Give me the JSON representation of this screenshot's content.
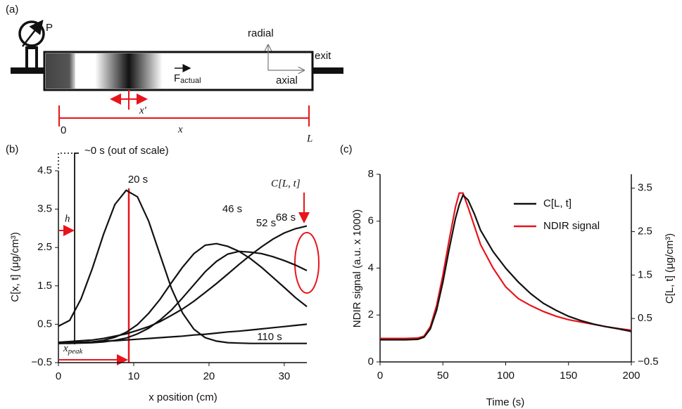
{
  "panel_a": {
    "label": "(a)",
    "pressure": "P",
    "radial": "radial",
    "axial": "axial",
    "exit": "exit",
    "force": {
      "base": "F",
      "sub": "actual"
    },
    "width": "x′",
    "length": "x",
    "start": "0",
    "end": "L"
  },
  "chart_data": [
    {
      "type": "line",
      "panel": "(b)",
      "xlabel": "x position (cm)",
      "ylabel": "C[x, t] (μg/cm³)",
      "x": [
        0,
        1.5,
        3,
        4.5,
        6,
        7.5,
        9,
        10.5,
        12,
        13.5,
        15,
        16.5,
        18,
        19.5,
        21,
        22.5,
        24,
        25.5,
        27,
        28.5,
        30,
        31.5,
        33
      ],
      "xlim": [
        0,
        33
      ],
      "xticks": [
        0,
        10,
        20,
        30
      ],
      "ylim": [
        -0.5,
        4.5
      ],
      "yticks": [
        {
          "value": -0.5,
          "label": "−0.5"
        },
        0.5,
        1.5,
        2.5,
        3.5,
        4.5
      ],
      "series": [
        {
          "name": "20 s",
          "color": "#111111",
          "values": [
            0.45,
            0.6,
            1.16,
            1.95,
            2.85,
            3.62,
            3.99,
            3.82,
            3.18,
            2.31,
            1.44,
            0.79,
            0.37,
            0.15,
            0.06,
            0.02,
            0.01,
            0,
            0,
            0,
            0,
            0,
            0
          ]
        },
        {
          "name": "46 s",
          "color": "#111111",
          "values": [
            0,
            0.01,
            0.02,
            0.04,
            0.08,
            0.16,
            0.29,
            0.49,
            0.79,
            1.15,
            1.58,
            1.99,
            2.34,
            2.56,
            2.6,
            2.53,
            2.4,
            2.21,
            1.98,
            1.72,
            1.46,
            1.19,
            0.96
          ]
        },
        {
          "name": "52 s",
          "color": "#111111",
          "values": [
            0,
            0,
            0.01,
            0.02,
            0.04,
            0.08,
            0.14,
            0.25,
            0.4,
            0.61,
            0.87,
            1.19,
            1.53,
            1.87,
            2.14,
            2.33,
            2.4,
            2.38,
            2.34,
            2.26,
            2.16,
            2.04,
            1.9
          ]
        },
        {
          "name": "68 s",
          "color": "#111111",
          "values": [
            0.03,
            0.05,
            0.07,
            0.09,
            0.13,
            0.19,
            0.25,
            0.34,
            0.44,
            0.57,
            0.73,
            0.9,
            1.1,
            1.33,
            1.56,
            1.81,
            2.06,
            2.3,
            2.52,
            2.72,
            2.88,
            2.99,
            3.06
          ]
        },
        {
          "name": "110 s",
          "color": "#111111",
          "values": [
            0.02,
            0.03,
            0.03,
            0.04,
            0.06,
            0.07,
            0.09,
            0.11,
            0.13,
            0.15,
            0.17,
            0.19,
            0.22,
            0.24,
            0.27,
            0.3,
            0.32,
            0.35,
            0.38,
            0.41,
            0.44,
            0.47,
            0.5
          ]
        }
      ],
      "annotations": {
        "spike": "~0 s (out of scale)",
        "h": "h",
        "x_peak": {
          "base": "x",
          "sub": "peak"
        },
        "outlet": "C[L, t]"
      }
    },
    {
      "type": "line",
      "panel": "(c)",
      "xlabel": "Time (s)",
      "ylabel": "NDIR signal (a.u. x 1000)",
      "y2label": "C[L, t] (μg/cm³)",
      "x": [
        0,
        10,
        20,
        30,
        35,
        40,
        45,
        50,
        55,
        60,
        63,
        66,
        70,
        75,
        80,
        90,
        100,
        110,
        120,
        130,
        140,
        150,
        160,
        170,
        180,
        190,
        200
      ],
      "xlim": [
        0,
        200
      ],
      "xticks": [
        0,
        50,
        100,
        150,
        200
      ],
      "ylim": [
        0,
        8
      ],
      "yticks": [
        0,
        2,
        4,
        6,
        8
      ],
      "y2lim": [
        -0.5,
        3.82
      ],
      "y2ticks": [
        {
          "value": -0.5,
          "label": "−0.5"
        },
        0.5,
        1.5,
        2.5,
        3.5
      ],
      "legend": "upper right",
      "series": [
        {
          "name": "NDIR signal",
          "color": "#e8141b",
          "values": [
            1.0,
            1.0,
            1.0,
            1.02,
            1.1,
            1.5,
            2.4,
            3.7,
            5.2,
            6.6,
            7.2,
            7.2,
            6.6,
            5.8,
            5.0,
            4.0,
            3.2,
            2.7,
            2.4,
            2.15,
            1.95,
            1.8,
            1.7,
            1.6,
            1.5,
            1.42,
            1.35
          ]
        },
        {
          "name": "C[L, t]",
          "color": "#111111",
          "axis": "y2",
          "values": [
            0.01,
            0.01,
            0.01,
            0.02,
            0.07,
            0.26,
            0.69,
            1.34,
            2.1,
            2.8,
            3.12,
            3.34,
            3.23,
            2.91,
            2.53,
            2.04,
            1.66,
            1.34,
            1.07,
            0.85,
            0.69,
            0.55,
            0.45,
            0.37,
            0.31,
            0.26,
            0.2
          ]
        }
      ]
    }
  ]
}
